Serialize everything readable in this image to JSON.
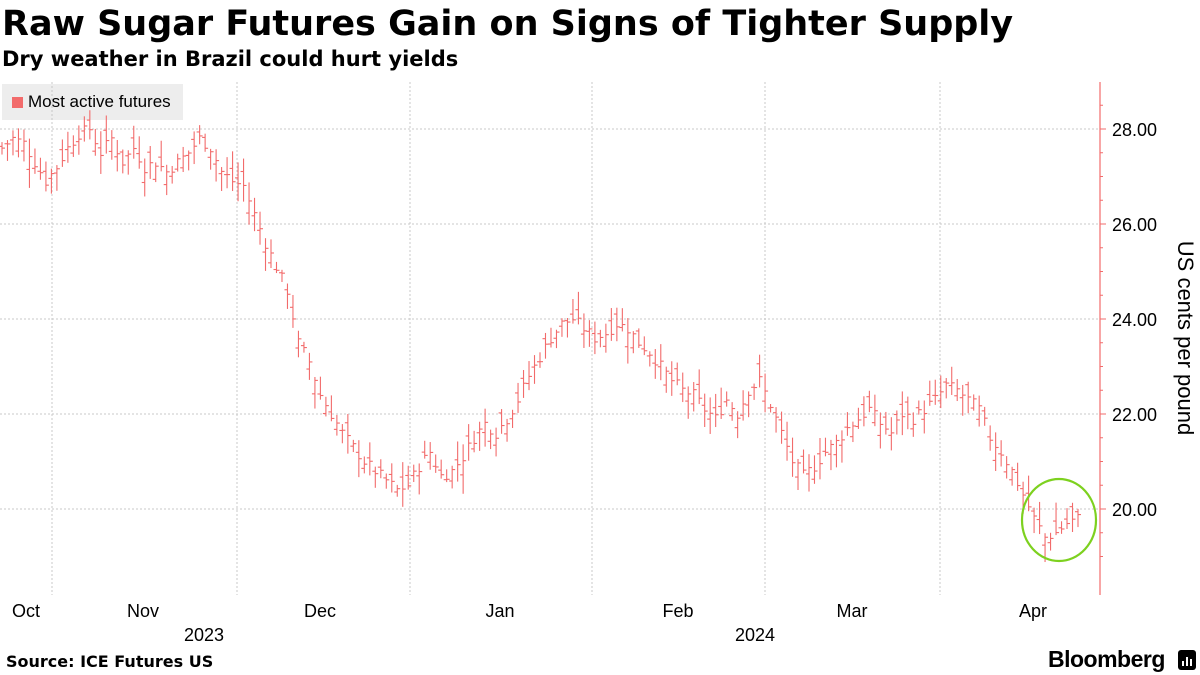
{
  "header": {
    "title": "Raw Sugar Futures Gain on Signs of Tighter Supply",
    "subtitle": "Dry weather in Brazil could hurt yields"
  },
  "footer": {
    "source": "Source: ICE Futures US",
    "brand": "Bloomberg"
  },
  "colors": {
    "series": "#f26b6b",
    "grid": "#c8c8c8",
    "axis": "#f26b6b",
    "highlight": "#7dd11f",
    "legend_bg": "#ededed"
  },
  "chart_data": {
    "type": "ohlc",
    "title": "Raw Sugar Futures Gain on Signs of Tighter Supply",
    "subtitle": "Dry weather in Brazil could hurt yields",
    "ylabel": "US cents per pound",
    "ylim": [
      18.5,
      29.0
    ],
    "y_ticks": [
      20,
      22,
      24,
      26,
      28
    ],
    "y_tick_labels": [
      "20.00",
      "22.00",
      "24.00",
      "26.00",
      "28.00"
    ],
    "month_labels": [
      "Oct",
      "Nov",
      "Dec",
      "Jan",
      "Feb",
      "Mar",
      "Apr"
    ],
    "year_labels": [
      "2023",
      "2024"
    ],
    "legend": [
      {
        "name": "Most active futures"
      }
    ],
    "annotation": "circled recent gain in April",
    "series": [
      {
        "name": "Most active futures",
        "period": "2023-10-02 to 2024-04-15 (daily)",
        "close": [
          27.6,
          27.8,
          27.7,
          27.3,
          26.9,
          27.2,
          27.6,
          27.9,
          28.0,
          27.5,
          27.8,
          27.3,
          27.6,
          27.2,
          27.3,
          27.1,
          27.3,
          27.5,
          27.8,
          27.6,
          27.1,
          26.9,
          26.8,
          26.2,
          25.6,
          25.1,
          24.6,
          23.5,
          23.1,
          22.4,
          22.0,
          21.6,
          21.3,
          21.0,
          20.8,
          20.6,
          20.4,
          20.5,
          20.9,
          21.2,
          20.7,
          20.8,
          21.1,
          21.5,
          21.8,
          21.6,
          21.9,
          22.3,
          22.8,
          23.2,
          23.6,
          23.9,
          24.0,
          23.8,
          23.6,
          23.7,
          23.9,
          23.8,
          23.5,
          23.3,
          23.0,
          22.7,
          22.5,
          22.4,
          22.1,
          21.9,
          22.3,
          22.0,
          22.5,
          22.7,
          22.2,
          21.6,
          21.0,
          20.7,
          20.9,
          21.2,
          21.4,
          21.7,
          21.9,
          22.1,
          21.8,
          21.6,
          22.0,
          21.9,
          22.1,
          22.3,
          22.6,
          22.5,
          22.3,
          22.1,
          21.5,
          21.2,
          20.8,
          20.3,
          19.8,
          19.4,
          19.5,
          19.7,
          19.8
        ]
      }
    ]
  }
}
